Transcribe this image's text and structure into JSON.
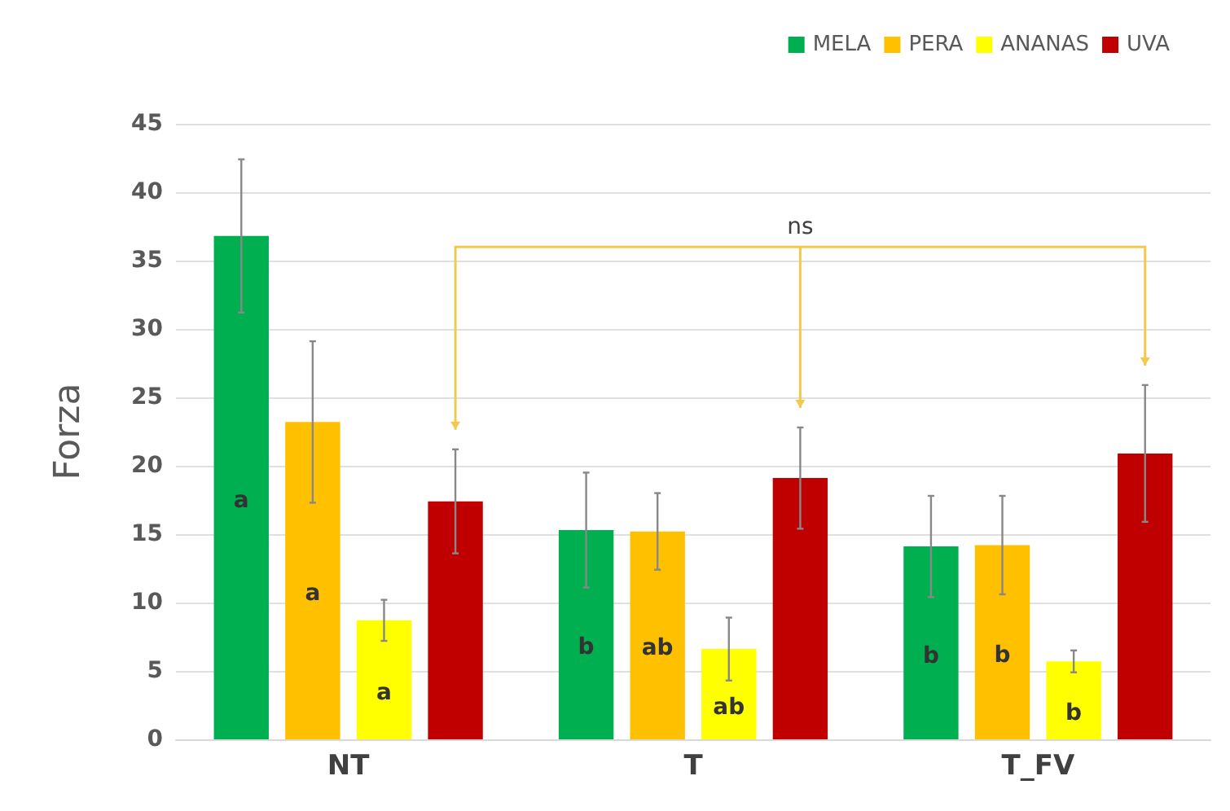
{
  "chart_data": {
    "type": "bar",
    "categories": [
      "NT",
      "T",
      "T_FV"
    ],
    "ylabel": "Forza",
    "ylim": [
      0,
      45
    ],
    "yticks": [
      0,
      5,
      10,
      15,
      20,
      25,
      30,
      35,
      40,
      45
    ],
    "grid": "y",
    "legend": "top right",
    "series": [
      {
        "name": "MELA",
        "color": "#00b050",
        "values": [
          36.8,
          15.3,
          14.1
        ],
        "errors": [
          5.6,
          4.2,
          3.7
        ],
        "value_labels": [
          "a",
          "b",
          "b"
        ]
      },
      {
        "name": "PERA",
        "color": "#ffc000",
        "values": [
          23.2,
          15.2,
          14.2
        ],
        "errors": [
          5.9,
          2.8,
          3.6
        ],
        "value_labels": [
          "a",
          "ab",
          "b"
        ]
      },
      {
        "name": "ANANAS",
        "color": "#ffff00",
        "values": [
          8.7,
          6.6,
          5.7
        ],
        "errors": [
          1.5,
          2.3,
          0.8
        ],
        "value_labels": [
          "a",
          "ab",
          "b"
        ]
      },
      {
        "name": "UVA",
        "color": "#c00000",
        "values": [
          17.4,
          19.1,
          20.9
        ],
        "errors": [
          3.8,
          3.7,
          5.0
        ],
        "value_labels": [
          null,
          null,
          null
        ]
      }
    ],
    "annotations": [
      "ns"
    ]
  }
}
